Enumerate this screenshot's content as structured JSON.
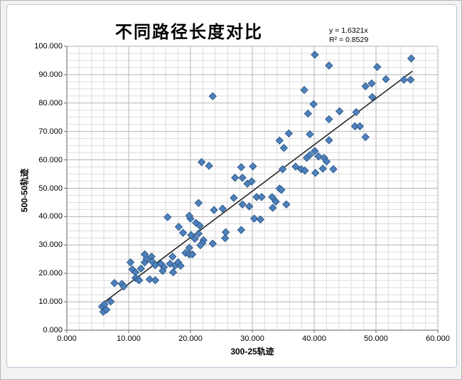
{
  "window": {
    "background": "#f2f2f2",
    "panel_background": "#ffffff",
    "panel_border_color": "#b7c6d5"
  },
  "chart_data": {
    "type": "scatter",
    "title": "不同路径长度对比",
    "xlabel": "300-25轨迹",
    "ylabel": "500-50轨迹",
    "annotation": {
      "equation": "y = 1.6321x",
      "r_squared": "R² = 0.8529"
    },
    "legend": "none",
    "grid": "major-and-minor",
    "x_axis": {
      "min": 0,
      "max": 60,
      "major_unit": 10,
      "minor_unit": 2,
      "tick_labels": [
        "0.000",
        "10.000",
        "20.000",
        "30.000",
        "40.000",
        "50.000",
        "60.000"
      ]
    },
    "y_axis": {
      "min": 0,
      "max": 100,
      "major_unit": 10,
      "minor_unit": 2.5,
      "tick_labels": [
        "0.000",
        "10.000",
        "20.000",
        "30.000",
        "40.000",
        "50.000",
        "60.000",
        "70.000",
        "80.000",
        "90.000",
        "100.000"
      ]
    },
    "marker": {
      "shape": "diamond",
      "fill": "#4F81BD",
      "stroke": "#2E5B8C",
      "size": 10
    },
    "trendline": {
      "slope": 1.6321,
      "intercept": 0,
      "x_start": 5.4,
      "x_end": 55.9,
      "color": "#262626"
    },
    "colors": {
      "minor_grid": "#dcdcdc",
      "major_grid": "#b3b3b3",
      "axis_line": "#808080"
    },
    "points": [
      [
        5.7,
        8.3
      ],
      [
        6.1,
        9.1
      ],
      [
        5.9,
        6.5
      ],
      [
        6.4,
        7.2
      ],
      [
        7.1,
        10.1
      ],
      [
        7.7,
        16.6
      ],
      [
        8.9,
        16.3
      ],
      [
        9.2,
        15.4
      ],
      [
        10.3,
        23.9
      ],
      [
        10.6,
        21.4
      ],
      [
        11.1,
        20.4
      ],
      [
        12.0,
        21.7
      ],
      [
        12.6,
        23.9
      ],
      [
        12.9,
        25.2
      ],
      [
        12.6,
        26.7
      ],
      [
        13.7,
        25.9
      ],
      [
        13.8,
        24.2
      ],
      [
        14.3,
        22.9
      ],
      [
        15.2,
        23.4
      ],
      [
        15.7,
        22.2
      ],
      [
        15.5,
        20.9
      ],
      [
        11.1,
        18.4
      ],
      [
        11.5,
        17.9
      ],
      [
        11.7,
        17.6
      ],
      [
        13.4,
        17.9
      ],
      [
        14.3,
        17.6
      ],
      [
        16.3,
        39.8
      ],
      [
        17.1,
        25.9
      ],
      [
        16.7,
        23.4
      ],
      [
        17.5,
        22.7
      ],
      [
        18.0,
        23.9
      ],
      [
        18.4,
        22.7
      ],
      [
        17.2,
        20.4
      ],
      [
        19.2,
        27.2
      ],
      [
        19.8,
        26.7
      ],
      [
        19.8,
        29.0
      ],
      [
        20.1,
        33.5
      ],
      [
        20.7,
        32.2
      ],
      [
        21.3,
        34.0
      ],
      [
        18.8,
        34.3
      ],
      [
        18.1,
        36.4
      ],
      [
        20.0,
        39.3
      ],
      [
        20.3,
        26.7
      ],
      [
        22.1,
        31.7
      ],
      [
        21.9,
        30.6
      ],
      [
        21.6,
        29.9
      ],
      [
        23.6,
        30.5
      ],
      [
        25.6,
        32.4
      ],
      [
        25.7,
        34.5
      ],
      [
        19.8,
        40.3
      ],
      [
        20.9,
        37.8
      ],
      [
        21.5,
        36.8
      ],
      [
        21.3,
        44.8
      ],
      [
        23.8,
        42.3
      ],
      [
        25.2,
        42.8
      ],
      [
        21.8,
        59.2
      ],
      [
        23.0,
        57.9
      ],
      [
        23.6,
        82.4
      ],
      [
        27.0,
        46.6
      ],
      [
        27.2,
        53.7
      ],
      [
        28.4,
        53.7
      ],
      [
        28.2,
        57.4
      ],
      [
        30.1,
        57.7
      ],
      [
        29.2,
        51.6
      ],
      [
        29.9,
        52.4
      ],
      [
        28.4,
        44.3
      ],
      [
        29.5,
        43.6
      ],
      [
        30.7,
        46.9
      ],
      [
        31.5,
        46.9
      ],
      [
        30.3,
        39.3
      ],
      [
        31.3,
        39.0
      ],
      [
        28.2,
        35.3
      ],
      [
        33.2,
        46.9
      ],
      [
        33.8,
        45.3
      ],
      [
        33.3,
        43.1
      ],
      [
        34.4,
        49.9
      ],
      [
        34.7,
        49.4
      ],
      [
        35.5,
        44.3
      ],
      [
        34.4,
        66.8
      ],
      [
        35.1,
        64.2
      ],
      [
        35.9,
        69.3
      ],
      [
        34.9,
        56.7
      ],
      [
        37.0,
        57.6
      ],
      [
        37.9,
        56.7
      ],
      [
        38.5,
        56.2
      ],
      [
        38.8,
        60.7
      ],
      [
        39.3,
        61.7
      ],
      [
        40.1,
        63.1
      ],
      [
        40.7,
        61.2
      ],
      [
        41.6,
        60.7
      ],
      [
        42.0,
        59.4
      ],
      [
        40.2,
        55.4
      ],
      [
        41.4,
        56.9
      ],
      [
        43.1,
        56.7
      ],
      [
        39.3,
        69.0
      ],
      [
        39.9,
        79.6
      ],
      [
        38.4,
        84.6
      ],
      [
        40.1,
        97.0
      ],
      [
        42.4,
        93.2
      ],
      [
        39.0,
        76.3
      ],
      [
        42.4,
        74.3
      ],
      [
        42.4,
        66.9
      ],
      [
        44.1,
        77.1
      ],
      [
        46.8,
        76.8
      ],
      [
        46.6,
        71.8
      ],
      [
        47.4,
        71.8
      ],
      [
        48.3,
        68.0
      ],
      [
        48.3,
        85.9
      ],
      [
        49.3,
        86.9
      ],
      [
        49.4,
        82.1
      ],
      [
        50.2,
        92.7
      ],
      [
        51.6,
        88.4
      ],
      [
        54.5,
        88.2
      ],
      [
        55.6,
        88.2
      ],
      [
        55.7,
        95.7
      ]
    ]
  }
}
